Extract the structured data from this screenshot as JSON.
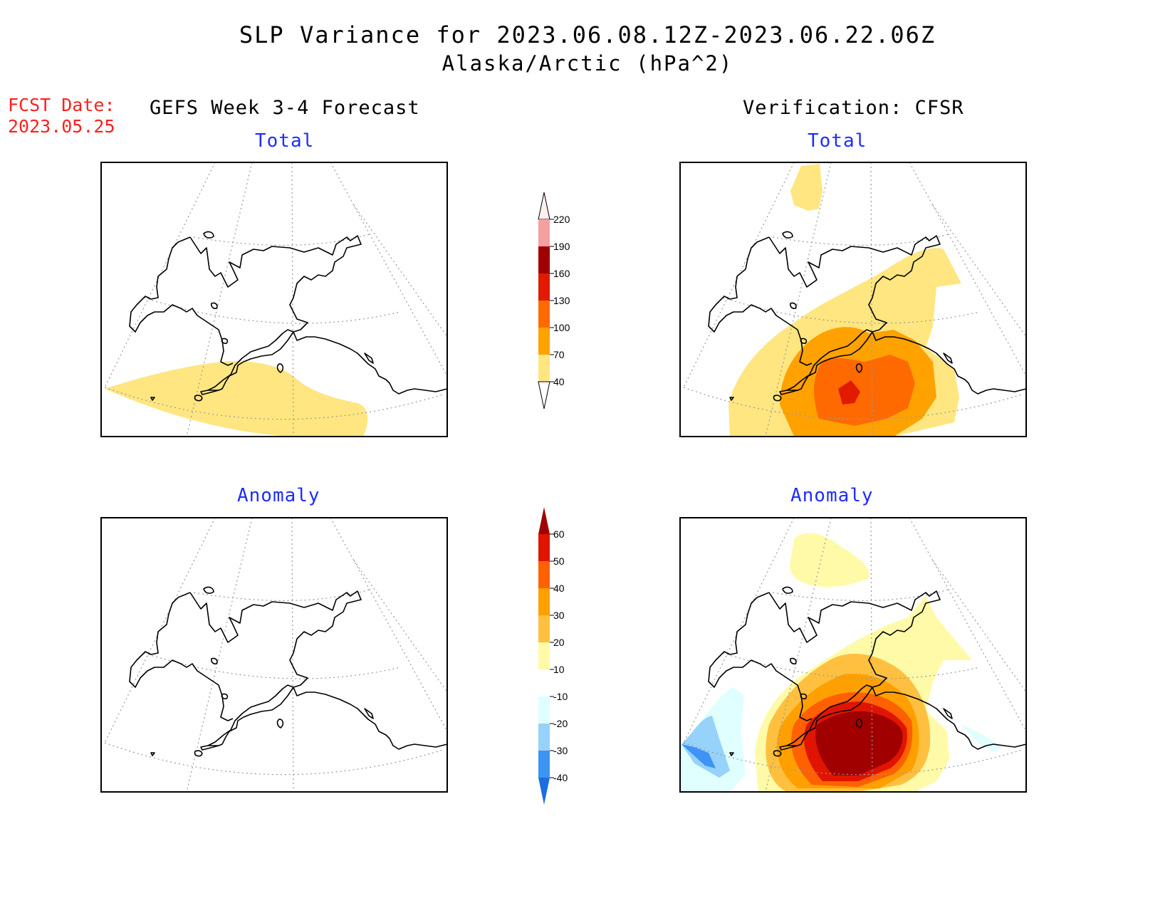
{
  "header": {
    "title_line1": "SLP Variance for 2023.06.08.12Z-2023.06.22.06Z",
    "title_line2": "Alaska/Arctic (hPa^2)"
  },
  "fcst_date": {
    "label": "FCST Date:",
    "value": "2023.05.25"
  },
  "columns": {
    "left": "GEFS Week 3-4 Forecast",
    "right": "Verification: CFSR"
  },
  "panels": {
    "forecast_total": "Total",
    "verification_total": "Total",
    "forecast_anomaly": "Anomaly",
    "verification_anomaly": "Anomaly"
  },
  "colorbars": {
    "total": {
      "labels": [
        "40",
        "70",
        "100",
        "130",
        "160",
        "190",
        "220"
      ],
      "colors": [
        "#ffe680",
        "#ffa200",
        "#ff6a00",
        "#e11a00",
        "#a00000",
        "#f4a0a0",
        "#fff0f0"
      ]
    },
    "anomaly": {
      "labels": [
        "-40",
        "-30",
        "-20",
        "-10",
        "10",
        "20",
        "30",
        "40",
        "50",
        "60"
      ],
      "colors": [
        "#1c6ee0",
        "#3c94f4",
        "#96d2fa",
        "#e0ffff",
        "#ffffff",
        "#fffaa8",
        "#ffc040",
        "#ffa000",
        "#ff6000",
        "#e01400",
        "#a00000"
      ]
    }
  },
  "colors": {
    "title_text": "#000000",
    "fcst_text": "#ff2020",
    "panel_label_text": "#1e2cff"
  }
}
